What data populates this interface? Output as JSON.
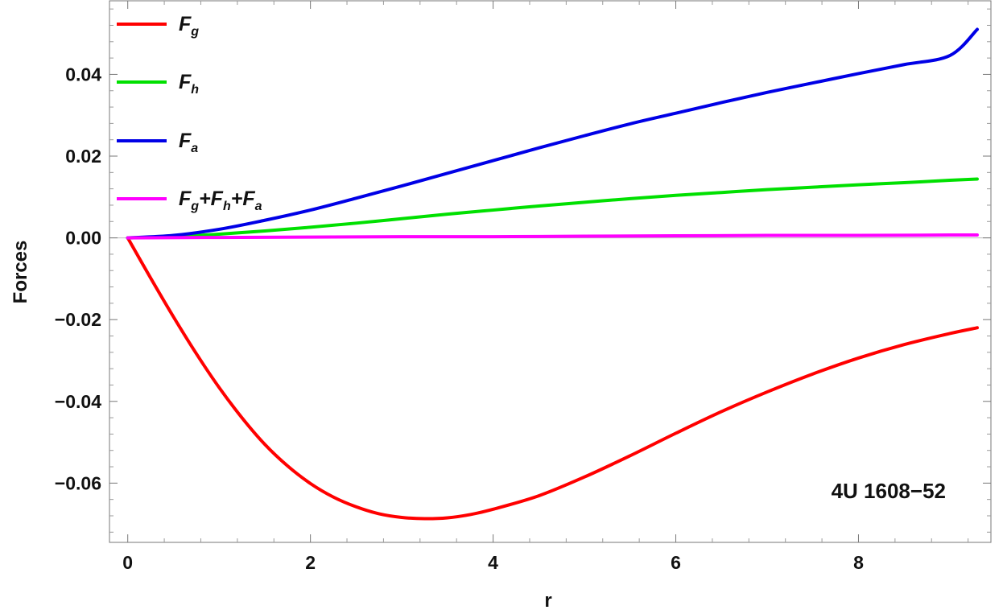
{
  "chart_data": {
    "type": "line",
    "xlabel": "r",
    "ylabel": "Forces",
    "xlim": [
      -0.2,
      9.45
    ],
    "ylim": [
      -0.0745,
      0.058
    ],
    "x_ticks": [
      0,
      2,
      4,
      6,
      8
    ],
    "x_tick_labels": [
      "0",
      "2",
      "4",
      "6",
      "8"
    ],
    "y_ticks": [
      -0.06,
      -0.04,
      -0.02,
      0.0,
      0.02,
      0.04
    ],
    "y_tick_labels": [
      "−0.06",
      "−0.04",
      "−0.02",
      "0.00",
      "0.02",
      "0.04"
    ],
    "grid": false,
    "frame": true,
    "legend_position": "top-left",
    "annotation": "4U 1608−52",
    "annotation_position": "bottom-right",
    "series": [
      {
        "name": "F_g",
        "legend_label": [
          {
            "t": "F"
          },
          {
            "t": "g",
            "sub": true
          }
        ],
        "color": "#ff0000",
        "x": [
          0,
          0.25,
          0.5,
          0.75,
          1.0,
          1.25,
          1.5,
          1.75,
          2.0,
          2.25,
          2.5,
          2.75,
          3.0,
          3.25,
          3.5,
          3.75,
          4.0,
          4.5,
          5.0,
          5.5,
          6.0,
          6.5,
          7.0,
          7.5,
          8.0,
          8.5,
          9.0,
          9.3
        ],
        "y": [
          0,
          -0.0098,
          -0.0193,
          -0.0283,
          -0.0366,
          -0.044,
          -0.0505,
          -0.0558,
          -0.0601,
          -0.0634,
          -0.0658,
          -0.0675,
          -0.0684,
          -0.0687,
          -0.0685,
          -0.0677,
          -0.0664,
          -0.0631,
          -0.0585,
          -0.0533,
          -0.0478,
          -0.0425,
          -0.0377,
          -0.0333,
          -0.0294,
          -0.0261,
          -0.0234,
          -0.022
        ]
      },
      {
        "name": "F_h",
        "legend_label": [
          {
            "t": "F"
          },
          {
            "t": "h",
            "sub": true
          }
        ],
        "color": "#00e000",
        "x": [
          0,
          0.5,
          1.0,
          1.5,
          2.0,
          2.5,
          3.0,
          3.5,
          4.0,
          4.5,
          5.0,
          5.5,
          6.0,
          6.5,
          7.0,
          7.5,
          8.0,
          8.5,
          9.0,
          9.3
        ],
        "y": [
          0,
          0.0003,
          0.0009,
          0.0017,
          0.0026,
          0.0036,
          0.0047,
          0.0058,
          0.0068,
          0.0078,
          0.0087,
          0.0096,
          0.0104,
          0.0111,
          0.0118,
          0.0124,
          0.013,
          0.0135,
          0.0141,
          0.0144
        ]
      },
      {
        "name": "F_a",
        "legend_label": [
          {
            "t": "F"
          },
          {
            "t": "a",
            "sub": true
          }
        ],
        "color": "#0000e6",
        "x": [
          0,
          0.5,
          1.0,
          1.5,
          2.0,
          2.5,
          3.0,
          3.5,
          4.0,
          4.5,
          5.0,
          5.5,
          6.0,
          6.5,
          7.0,
          7.5,
          8.0,
          8.5,
          9.0,
          9.3
        ],
        "y": [
          0,
          0.0006,
          0.0021,
          0.0043,
          0.0068,
          0.0097,
          0.0127,
          0.0158,
          0.0189,
          0.022,
          0.025,
          0.0279,
          0.0305,
          0.0331,
          0.0356,
          0.0379,
          0.0402,
          0.0424,
          0.0446,
          0.051
        ]
      },
      {
        "name": "F_g+F_h+F_a",
        "legend_label": [
          {
            "t": "F"
          },
          {
            "t": "g",
            "sub": true
          },
          {
            "t": "+F"
          },
          {
            "t": "h",
            "sub": true
          },
          {
            "t": "+F"
          },
          {
            "t": "a",
            "sub": true
          }
        ],
        "color": "#ff00ff",
        "x": [
          0,
          1.0,
          2.0,
          3.0,
          4.0,
          5.0,
          6.0,
          7.0,
          8.0,
          9.0,
          9.3
        ],
        "y": [
          0,
          0.0001,
          0.0002,
          0.0003,
          0.0003,
          0.0004,
          0.0005,
          0.0006,
          0.0006,
          0.0007,
          0.0007
        ]
      }
    ]
  }
}
